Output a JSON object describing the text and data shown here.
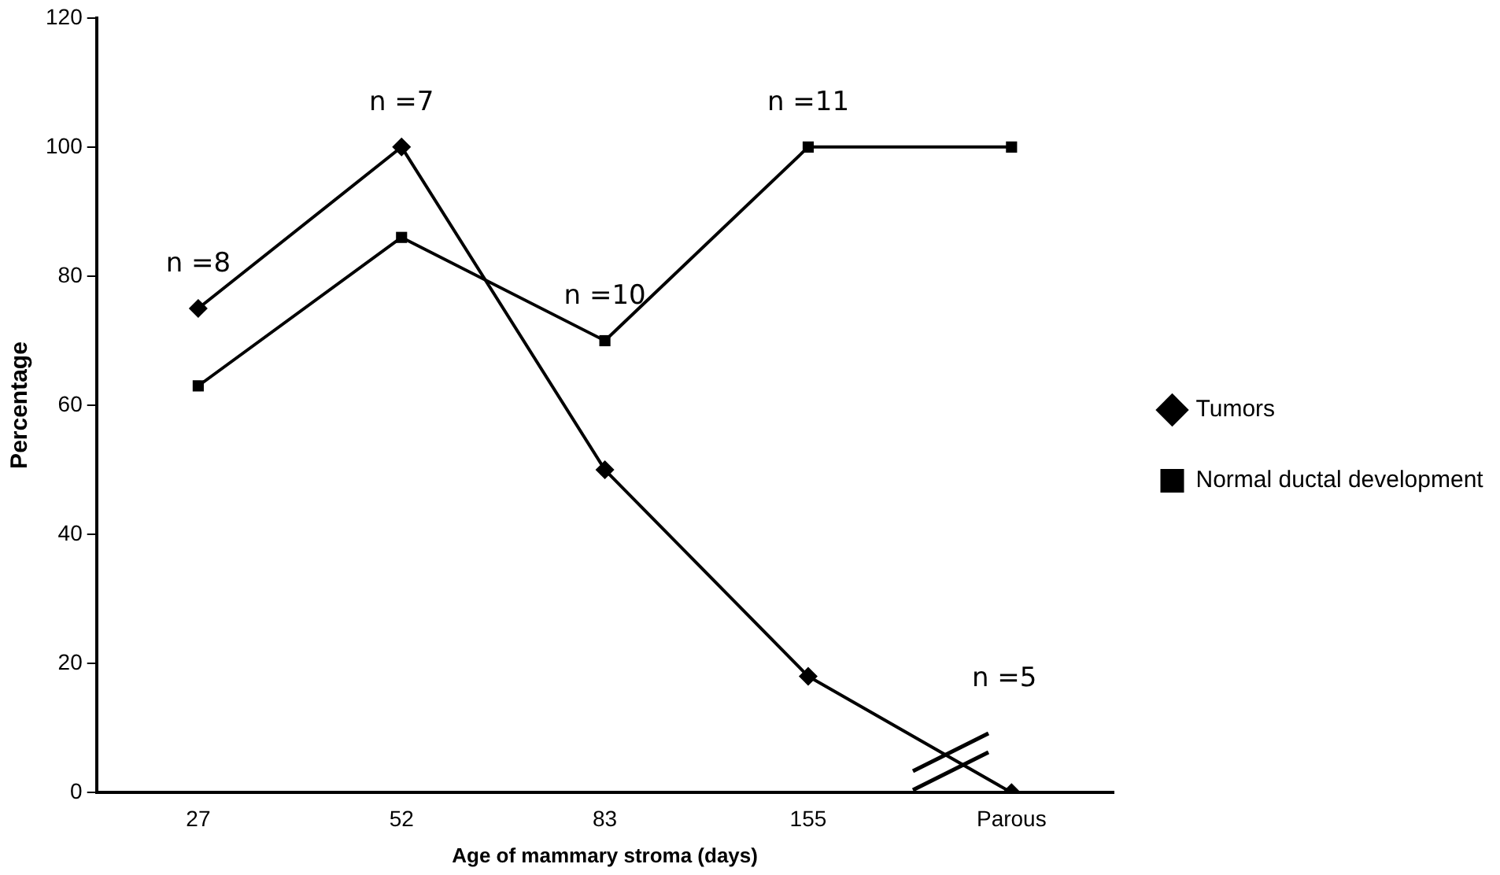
{
  "chart_data": {
    "type": "line",
    "xlabel": "Age of mammary stroma (days)",
    "ylabel": "Percentage",
    "categories": [
      "27",
      "52",
      "83",
      "155",
      "Parous"
    ],
    "ylim": [
      0,
      120
    ],
    "yticks": [
      0,
      20,
      40,
      60,
      80,
      100,
      120
    ],
    "grid": false,
    "legend": "right",
    "line_style": "solid",
    "series": [
      {
        "name": "Tumors",
        "color": "#000000",
        "marker": "diamond",
        "values": [
          75,
          100,
          50,
          18,
          0
        ]
      },
      {
        "name": "Normal ductal development",
        "color": "#000000",
        "marker": "square",
        "values": [
          63,
          86,
          70,
          100,
          100
        ]
      }
    ],
    "annotations": [
      "n =8",
      "n =7",
      "n =10",
      "n =11",
      "n =5"
    ]
  }
}
